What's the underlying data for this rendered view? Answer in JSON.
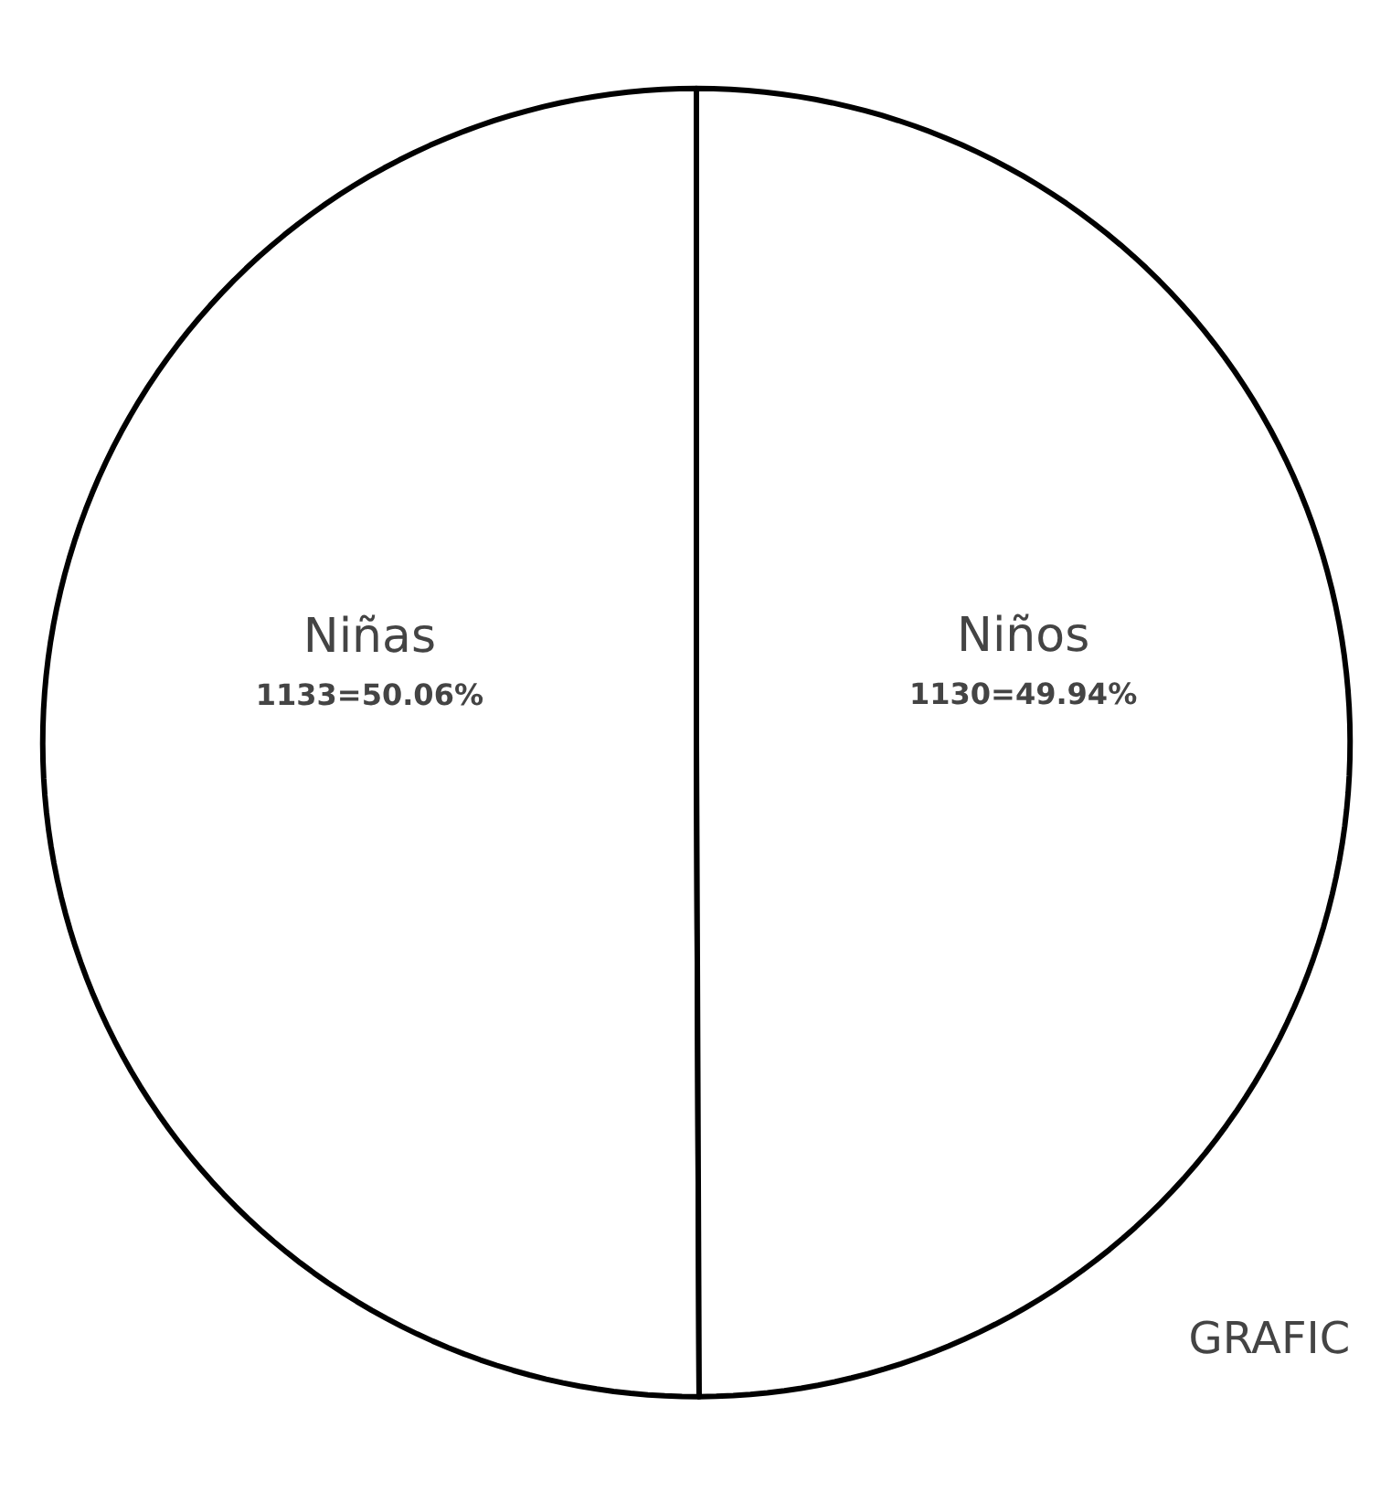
{
  "chart_data": {
    "type": "pie",
    "categories": [
      "Niñas",
      "Niños"
    ],
    "values": [
      1133,
      1130
    ],
    "colors": [
      "#ffffff",
      "#ffffff"
    ],
    "value_labels": [
      "1133=50.06%",
      "1130=49.94%"
    ],
    "annotations": [
      "GRAFIC"
    ]
  }
}
